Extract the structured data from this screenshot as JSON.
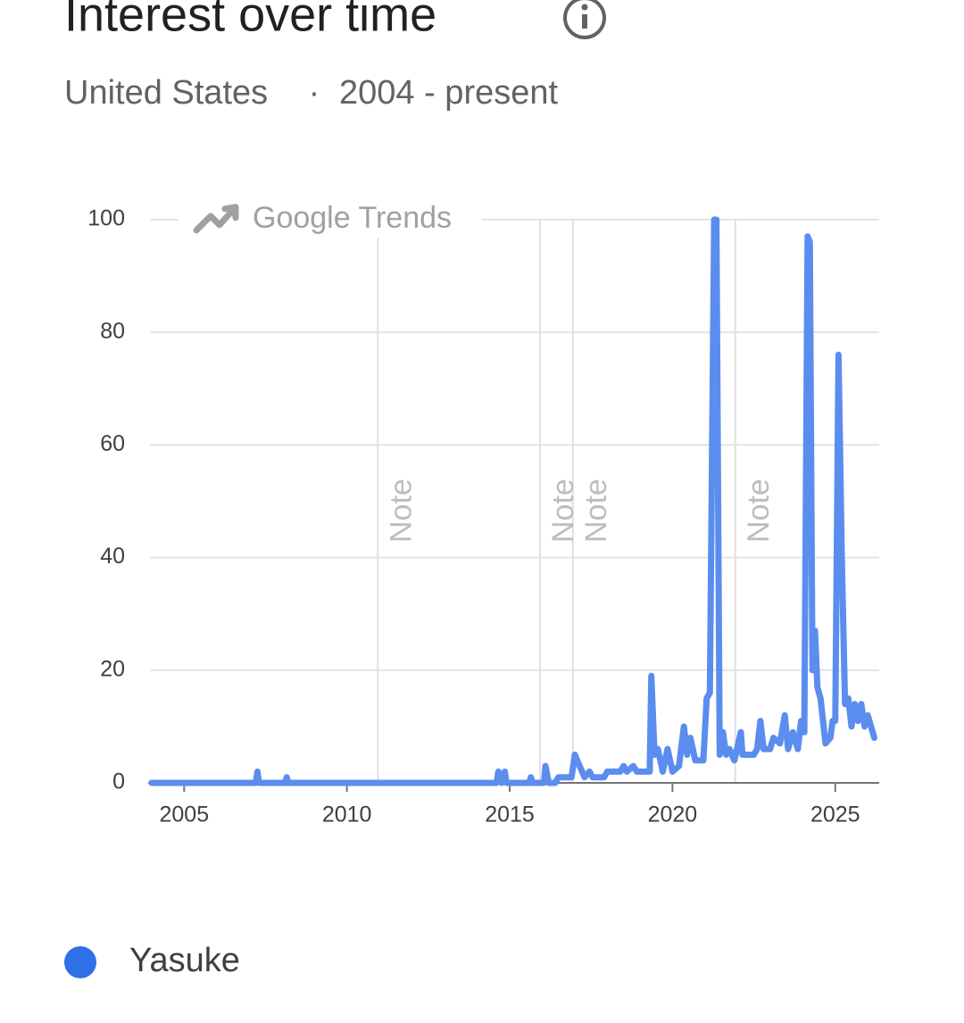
{
  "chart_data": {
    "type": "line",
    "title": "Interest over time",
    "subtitle": {
      "region": "United States",
      "separator": "·",
      "period": "2004 - present"
    },
    "watermark": "Google Trends",
    "x": [
      2004.0,
      2007.2,
      2007.25,
      2007.3,
      2008.1,
      2008.15,
      2008.2,
      2014.6,
      2014.65,
      2014.75,
      2014.85,
      2014.9,
      2015.6,
      2015.65,
      2015.7,
      2016.05,
      2016.1,
      2016.2,
      2016.4,
      2016.5,
      2016.9,
      2017.0,
      2017.15,
      2017.3,
      2017.45,
      2017.55,
      2017.9,
      2018.0,
      2018.4,
      2018.5,
      2018.6,
      2018.8,
      2018.9,
      2019.3,
      2019.35,
      2019.45,
      2019.55,
      2019.7,
      2019.85,
      2020.0,
      2020.2,
      2020.35,
      2020.45,
      2020.55,
      2020.7,
      2020.95,
      2021.05,
      2021.15,
      2021.28,
      2021.35,
      2021.45,
      2021.55,
      2021.65,
      2021.75,
      2021.9,
      2022.1,
      2022.15,
      2022.5,
      2022.6,
      2022.7,
      2022.8,
      2023.0,
      2023.1,
      2023.3,
      2023.45,
      2023.55,
      2023.7,
      2023.85,
      2023.95,
      2024.05,
      2024.15,
      2024.22,
      2024.3,
      2024.38,
      2024.45,
      2024.55,
      2024.7,
      2024.85,
      2024.92,
      2025.0,
      2025.1,
      2025.2,
      2025.3,
      2025.4,
      2025.5,
      2025.6,
      2025.7,
      2025.8,
      2025.9,
      2026.0,
      2026.2
    ],
    "series": [
      {
        "name": "Yasuke",
        "color": "#5b8def",
        "values": [
          0,
          0,
          2,
          0,
          0,
          1,
          0,
          0,
          2,
          0,
          2,
          0,
          0,
          1,
          0,
          0,
          3,
          0,
          0,
          1,
          1,
          5,
          3,
          1,
          2,
          1,
          1,
          2,
          2,
          3,
          2,
          3,
          2,
          2,
          19,
          5,
          6,
          2,
          6,
          2,
          3,
          10,
          5,
          8,
          4,
          4,
          15,
          16,
          100,
          100,
          5,
          9,
          5,
          6,
          4,
          9,
          5,
          5,
          6,
          11,
          6,
          6,
          8,
          7,
          12,
          6,
          9,
          6,
          11,
          9,
          97,
          96,
          20,
          27,
          17,
          15,
          7,
          8,
          11,
          11,
          76,
          40,
          14,
          15,
          10,
          14,
          11,
          14,
          10,
          12,
          8
        ]
      }
    ],
    "xlim": [
      2003.95,
      2026.35
    ],
    "xticks": [
      2005,
      2010,
      2015,
      2020,
      2025
    ],
    "ylim": [
      0,
      100
    ],
    "yticks": [
      0,
      20,
      40,
      60,
      80,
      100
    ],
    "grid": true,
    "annotations": [
      {
        "x": 2010.95,
        "label": "Note"
      },
      {
        "x": 2015.93,
        "label": "Note"
      },
      {
        "x": 2016.94,
        "label": "Note"
      },
      {
        "x": 2021.93,
        "label": "Note"
      }
    ]
  }
}
